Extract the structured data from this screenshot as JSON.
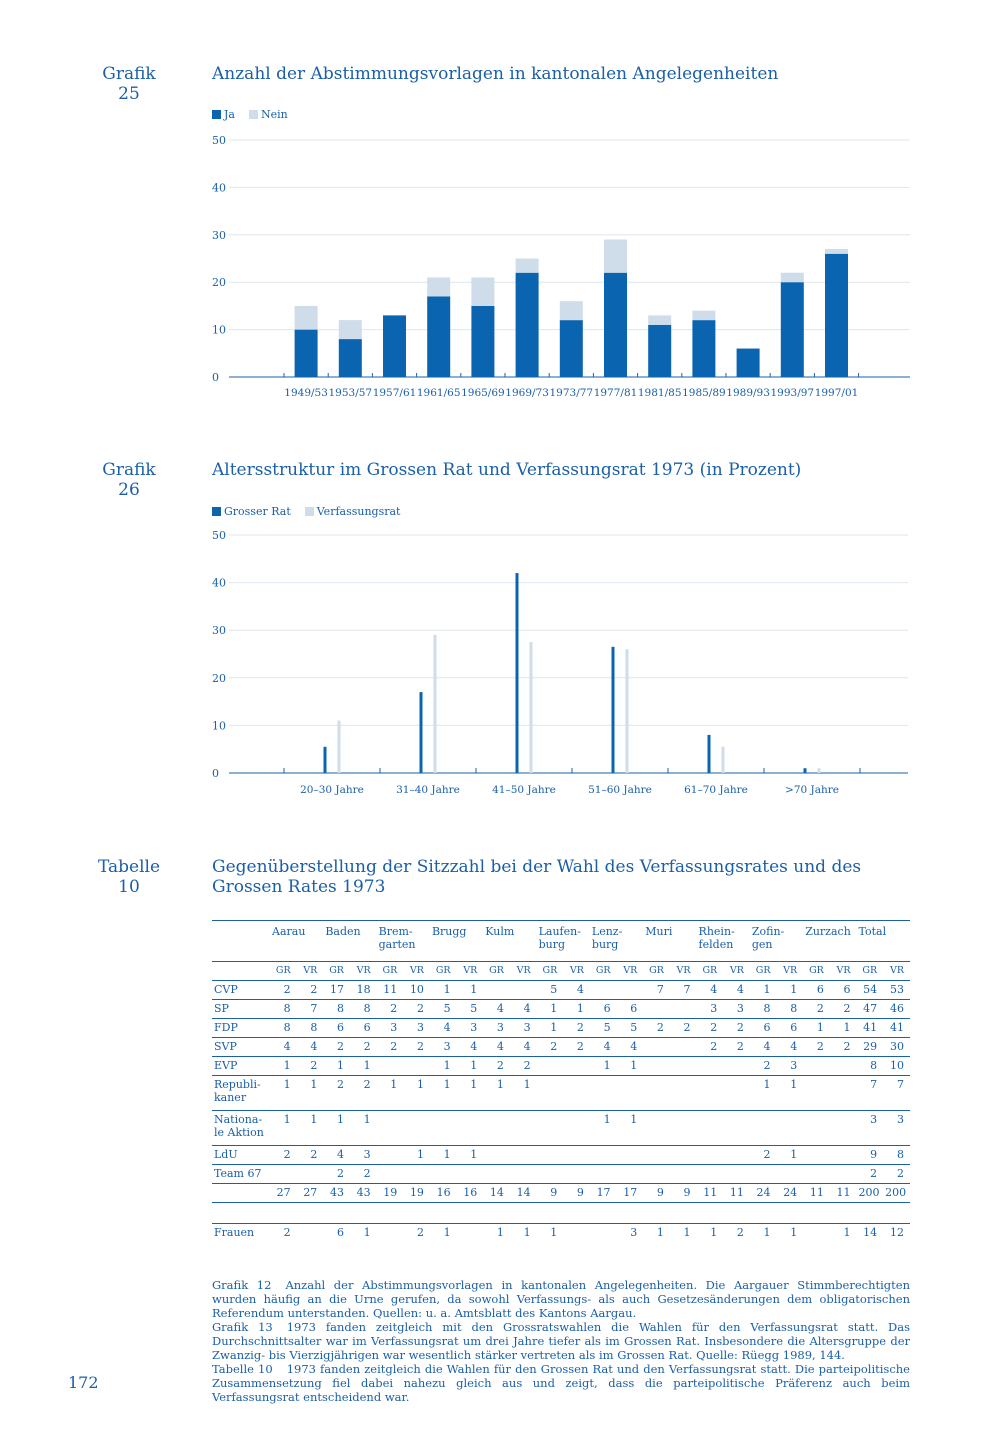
{
  "figures": [
    {
      "label_1": "Grafik",
      "label_2": "25",
      "title": "Anzahl der Abstimmungsvorlagen in kantonalen Angelegenheiten",
      "legend": [
        "Ja",
        "Nein"
      ]
    },
    {
      "label_1": "Grafik",
      "label_2": "26",
      "title": "Altersstruktur im Grossen Rat und Verfassungsrat 1973 (in Prozent)",
      "legend": [
        "Grosser Rat",
        "Verfassungsrat"
      ]
    },
    {
      "label_1": "Tabelle",
      "label_2": "10",
      "title_1": "Gegenüberstellung der Sitzzahl bei der Wahl des Verfassungsrates und des",
      "title_2": "Grossen Rates 1973"
    }
  ],
  "colors": {
    "dark": "#0a64b0",
    "light": "#cfdcea",
    "text": "#1a5fa8"
  },
  "chart_data": [
    {
      "type": "bar",
      "stacked": true,
      "title": "Anzahl der Abstimmungsvorlagen in kantonalen Angelegenheiten",
      "categories": [
        "1949/53",
        "1953/57",
        "1957/61",
        "1961/65",
        "1965/69",
        "1969/73",
        "1973/77",
        "1977/81",
        "1981/85",
        "1985/89",
        "1989/93",
        "1993/97",
        "1997/01"
      ],
      "series": [
        {
          "name": "Ja",
          "values": [
            10,
            8,
            13,
            17,
            15,
            22,
            12,
            22,
            11,
            12,
            6,
            20,
            26
          ]
        },
        {
          "name": "Nein",
          "values": [
            5,
            4,
            0,
            4,
            6,
            3,
            4,
            7,
            2,
            2,
            0,
            2,
            1
          ]
        }
      ],
      "yticks": [
        0,
        10,
        20,
        30,
        40,
        50
      ],
      "ylim": [
        0,
        50
      ],
      "grid": true,
      "legend_position": "top-left"
    },
    {
      "type": "bar",
      "title": "Altersstruktur im Grossen Rat und Verfassungsrat 1973 (in Prozent)",
      "categories": [
        "20–30 Jahre",
        "31–40 Jahre",
        "41–50 Jahre",
        "51–60 Jahre",
        "61–70 Jahre",
        ">70 Jahre"
      ],
      "series": [
        {
          "name": "Grosser Rat",
          "values": [
            5.5,
            17,
            42,
            26.5,
            8,
            1
          ]
        },
        {
          "name": "Verfassungsrat",
          "values": [
            11,
            29,
            27.5,
            26,
            5.5,
            1
          ]
        }
      ],
      "yticks": [
        0,
        10,
        20,
        30,
        40,
        50
      ],
      "ylim": [
        0,
        50
      ],
      "grid": true,
      "legend_position": "top-left"
    },
    {
      "type": "table",
      "districts": [
        "Aarau",
        "Baden",
        "Brem-\ngarten",
        "Brugg",
        "Kulm",
        "Laufen-\nburg",
        "Lenz-\nburg",
        "Muri",
        "Rhein-\nfelden",
        "Zofin-\ngen",
        "Zurzach",
        "Total"
      ],
      "sub_headers": [
        "GR",
        "VR"
      ],
      "rows": [
        {
          "party": "CVP",
          "values": [
            "2",
            "2",
            "17",
            "18",
            "11",
            "10",
            "1",
            "1",
            "",
            "",
            "5",
            "4",
            "",
            "",
            "7",
            "7",
            "4",
            "4",
            "1",
            "1",
            "6",
            "6",
            "54",
            "53"
          ]
        },
        {
          "party": "SP",
          "values": [
            "8",
            "7",
            "8",
            "8",
            "2",
            "2",
            "5",
            "5",
            "4",
            "4",
            "1",
            "1",
            "6",
            "6",
            "",
            "",
            "3",
            "3",
            "8",
            "8",
            "2",
            "2",
            "47",
            "46"
          ]
        },
        {
          "party": "FDP",
          "values": [
            "8",
            "8",
            "6",
            "6",
            "3",
            "3",
            "4",
            "3",
            "3",
            "3",
            "1",
            "2",
            "5",
            "5",
            "2",
            "2",
            "2",
            "2",
            "6",
            "6",
            "1",
            "1",
            "41",
            "41"
          ]
        },
        {
          "party": "SVP",
          "values": [
            "4",
            "4",
            "2",
            "2",
            "2",
            "2",
            "3",
            "4",
            "4",
            "4",
            "2",
            "2",
            "4",
            "4",
            "",
            "",
            "2",
            "2",
            "4",
            "4",
            "2",
            "2",
            "29",
            "30"
          ]
        },
        {
          "party": "EVP",
          "values": [
            "1",
            "2",
            "1",
            "1",
            "",
            "",
            "1",
            "1",
            "2",
            "2",
            "",
            "",
            "1",
            "1",
            "",
            "",
            "",
            "",
            "2",
            "3",
            "",
            "",
            "8",
            "10"
          ]
        },
        {
          "party": "Republi-\nkaner",
          "tall": true,
          "values": [
            "1",
            "1",
            "2",
            "2",
            "1",
            "1",
            "1",
            "1",
            "1",
            "1",
            "",
            "",
            "",
            "",
            "",
            "",
            "",
            "",
            "1",
            "1",
            "",
            "",
            "7",
            "7"
          ]
        },
        {
          "party": "Nationa-\nle Aktion",
          "tall": true,
          "values": [
            "1",
            "1",
            "1",
            "1",
            "",
            "",
            "",
            "",
            "",
            "",
            "",
            "",
            "1",
            "1",
            "",
            "",
            "",
            "",
            "",
            "",
            "",
            "",
            "3",
            "3"
          ]
        },
        {
          "party": "LdU",
          "values": [
            "2",
            "2",
            "4",
            "3",
            "",
            "1",
            "1",
            "1",
            "",
            "",
            "",
            "",
            "",
            "",
            "",
            "",
            "",
            "",
            "2",
            "1",
            "",
            "",
            "9",
            "8"
          ]
        },
        {
          "party": "Team 67",
          "values": [
            "",
            "",
            "2",
            "2",
            "",
            "",
            "",
            "",
            "",
            "",
            "",
            "",
            "",
            "",
            "",
            "",
            "",
            "",
            "",
            "",
            "",
            "",
            "2",
            "2"
          ]
        },
        {
          "party": "",
          "values": [
            "27",
            "27",
            "43",
            "43",
            "19",
            "19",
            "16",
            "16",
            "14",
            "14",
            "9",
            "9",
            "17",
            "17",
            "9",
            "9",
            "11",
            "11",
            "24",
            "24",
            "11",
            "11",
            "200",
            "200"
          ]
        }
      ],
      "women_row": {
        "party": "Frauen",
        "values": [
          "2",
          "",
          "6",
          "1",
          "",
          "2",
          "1",
          "",
          "1",
          "1",
          "1",
          "",
          "",
          "3",
          "1",
          "1",
          "1",
          "2",
          "1",
          "1",
          "",
          "1",
          "14",
          "12"
        ]
      }
    }
  ],
  "notes": [
    {
      "label": "Grafik 12",
      "text": "Anzahl der Abstimmungsvorlagen in kantonalen Angelegenheiten. Die Aargauer Stimmberechtigten wurden häufig an die Urne gerufen, da sowohl Verfassungs- als auch Gesetzesänderungen dem obligatorischen Referendum unterstanden. Quellen: u. a. Amtsblatt des Kantons Aargau."
    },
    {
      "label": "Grafik 13",
      "text": "1973 fanden zeitgleich mit den Grossratswahlen die Wahlen für den Verfassungsrat statt. Das Durchschnittsalter war im Verfassungsrat um drei Jahre tiefer als im Grossen Rat. Insbesondere die Altersgruppe der Zwanzig- bis Vierzigjährigen war wesentlich stärker vertreten als im Grossen Rat. Quelle: Rüegg 1989, 144."
    },
    {
      "label": "Tabelle 10",
      "text": "1973 fanden zeitgleich die Wahlen für den Grossen Rat und den Verfassungsrat statt. Die parteipolitische Zusammensetzung fiel dabei nahezu gleich aus und zeigt, dass die parteipolitische Präferenz auch beim Verfassungsrat entscheidend war."
    }
  ],
  "page_number": "172"
}
